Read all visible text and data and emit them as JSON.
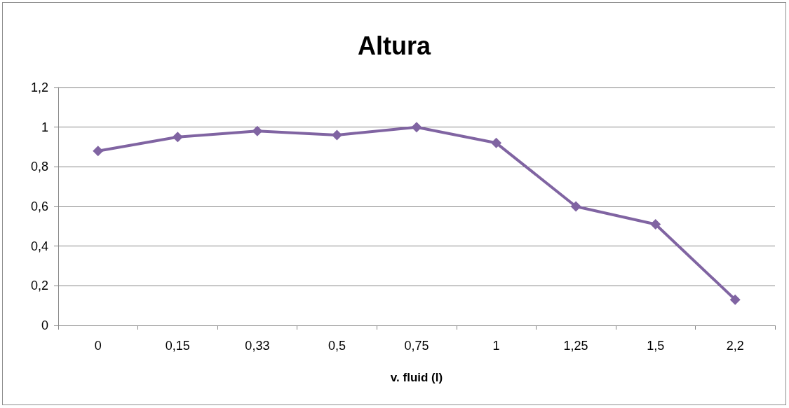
{
  "chart_data": {
    "type": "line",
    "title": "Altura",
    "xlabel": "v. fluid (l)",
    "categories": [
      "0",
      "0,15",
      "0,33",
      "0,5",
      "0,75",
      "1",
      "1,25",
      "1,5",
      "2,2"
    ],
    "series": [
      {
        "color": "#8064a2",
        "values": [
          0.88,
          0.95,
          0.98,
          0.96,
          1.0,
          0.92,
          0.6,
          0.51,
          0.13
        ]
      }
    ],
    "ylim": [
      0,
      1.2
    ],
    "yticks": [
      0,
      {
        "value": 0.2,
        "label": "0,2"
      },
      {
        "value": 0.4,
        "label": "0,4"
      },
      {
        "value": 0.6,
        "label": "0,6"
      },
      {
        "value": 0.8,
        "label": "0,8"
      },
      1,
      {
        "value": 1.2,
        "label": "1,2"
      }
    ],
    "grid": "y",
    "marker": "diamond",
    "line_style": "solid"
  }
}
